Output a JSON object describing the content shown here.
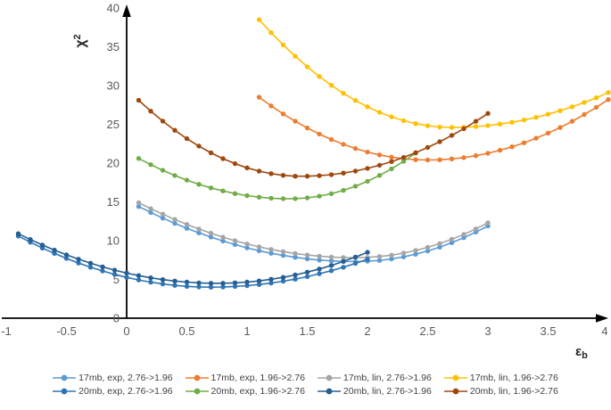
{
  "chart_data": {
    "type": "line",
    "title": "",
    "xlabel": "eps_b",
    "ylabel": "chi^2",
    "xlim": [
      -1,
      4
    ],
    "ylim": [
      0,
      40
    ],
    "grid": false,
    "legend_position": "bottom",
    "x_ticks": [
      {
        "v": -1,
        "label": "-1"
      },
      {
        "v": -0.5,
        "label": "-0.5"
      },
      {
        "v": 0,
        "label": "0"
      },
      {
        "v": 0.5,
        "label": "0.5"
      },
      {
        "v": 1,
        "label": "1"
      },
      {
        "v": 1.5,
        "label": "1.5"
      },
      {
        "v": 2,
        "label": "2"
      },
      {
        "v": 2.5,
        "label": "2.5"
      },
      {
        "v": 3,
        "label": "3"
      },
      {
        "v": 3.5,
        "label": "3.5"
      },
      {
        "v": 4,
        "label": "4"
      }
    ],
    "y_ticks": [
      {
        "v": 0,
        "label": "0"
      },
      {
        "v": 5,
        "label": "5"
      },
      {
        "v": 10,
        "label": "10"
      },
      {
        "v": 15,
        "label": "15"
      },
      {
        "v": 20,
        "label": "20"
      },
      {
        "v": 25,
        "label": "25"
      },
      {
        "v": 30,
        "label": "30"
      },
      {
        "v": 35,
        "label": "35"
      },
      {
        "v": 40,
        "label": "40"
      }
    ],
    "series": [
      {
        "name": "17mb, exp, 2.76->1.96",
        "color": "#5B9BD5",
        "x_start": 0.1,
        "x_step": 0.1,
        "y": [
          14.4,
          13.63,
          12.91,
          12.23,
          11.59,
          11.0,
          10.46,
          9.95,
          9.49,
          9.07,
          8.7,
          8.37,
          8.09,
          7.85,
          7.65,
          7.5,
          7.39,
          7.32,
          7.3,
          7.34,
          7.45,
          7.64,
          7.91,
          8.25,
          8.67,
          9.16,
          9.73,
          10.38,
          11.1,
          11.9
        ]
      },
      {
        "name": "17mb, exp, 1.96->2.76",
        "color": "#ED7D31",
        "x_start": 1.1,
        "x_step": 0.1,
        "y": [
          28.5,
          27.38,
          26.35,
          25.4,
          24.53,
          23.75,
          23.05,
          22.43,
          21.89,
          21.43,
          21.06,
          20.77,
          20.57,
          20.44,
          20.4,
          20.43,
          20.54,
          20.71,
          20.95,
          21.27,
          21.65,
          22.1,
          22.62,
          23.21,
          23.87,
          24.59,
          25.39,
          26.26,
          27.19,
          28.2
        ]
      },
      {
        "name": "17mb, lin, 2.76->1.96",
        "color": "#A5A5A5",
        "x_start": 0.1,
        "x_step": 0.1,
        "y": [
          14.9,
          14.13,
          13.41,
          12.73,
          12.09,
          11.5,
          10.96,
          10.45,
          9.99,
          9.57,
          9.2,
          8.87,
          8.59,
          8.35,
          8.15,
          8.0,
          7.89,
          7.82,
          7.8,
          7.84,
          7.95,
          8.13,
          8.4,
          8.73,
          9.14,
          9.62,
          10.18,
          10.81,
          11.52,
          12.3
        ]
      },
      {
        "name": "17mb, lin, 1.96->2.76",
        "color": "#FFC000",
        "x_start": 1.1,
        "x_step": 0.1,
        "y": [
          38.5,
          36.82,
          35.24,
          33.78,
          32.42,
          31.17,
          30.03,
          29.0,
          28.08,
          27.26,
          26.55,
          25.96,
          25.47,
          25.09,
          24.82,
          24.65,
          24.6,
          24.63,
          24.71,
          24.84,
          25.03,
          25.27,
          25.56,
          25.9,
          26.3,
          26.76,
          27.26,
          27.82,
          28.43,
          29.1
        ]
      },
      {
        "name": "20mb, exp, 2.76->1.96",
        "color": "#2E75B6",
        "x_start": -0.9,
        "x_step": 0.1,
        "y": [
          10.6,
          9.8,
          9.05,
          8.36,
          7.71,
          7.12,
          6.58,
          6.09,
          5.65,
          5.26,
          4.93,
          4.64,
          4.41,
          4.23,
          4.1,
          4.03,
          4.0,
          4.02,
          4.09,
          4.19,
          4.34,
          4.53,
          4.77,
          5.04,
          5.36,
          5.73,
          6.13,
          6.58,
          7.07,
          7.6
        ]
      },
      {
        "name": "20mb, exp, 1.96->2.76",
        "color": "#70AD47",
        "x_start": 0.1,
        "x_step": 0.1,
        "y": [
          20.6,
          19.8,
          19.07,
          18.4,
          17.8,
          17.27,
          16.81,
          16.41,
          16.07,
          15.81,
          15.61,
          15.47,
          15.41,
          15.41,
          15.52,
          15.73,
          16.06,
          16.48,
          17.02,
          17.66,
          18.41,
          19.27,
          20.23,
          21.3
        ]
      },
      {
        "name": "20mb, lin, 2.76->1.96",
        "color": "#255E91",
        "x_start": -0.9,
        "x_step": 0.1,
        "y": [
          10.9,
          10.15,
          9.44,
          8.78,
          8.17,
          7.61,
          7.09,
          6.62,
          6.2,
          5.82,
          5.49,
          5.21,
          4.98,
          4.79,
          4.65,
          4.55,
          4.51,
          4.51,
          4.56,
          4.66,
          4.81,
          5.02,
          5.27,
          5.58,
          5.94,
          6.35,
          6.81,
          7.32,
          7.89,
          8.5
        ]
      },
      {
        "name": "20mb, lin, 1.96->2.76",
        "color": "#9E480E",
        "x_start": 0.1,
        "x_step": 0.1,
        "y": [
          28.1,
          26.7,
          25.41,
          24.23,
          23.15,
          22.19,
          21.32,
          20.57,
          19.93,
          19.39,
          18.96,
          18.64,
          18.42,
          18.31,
          18.31,
          18.38,
          18.51,
          18.71,
          18.98,
          19.32,
          19.72,
          20.2,
          20.74,
          21.34,
          22.02,
          22.76,
          23.57,
          24.44,
          25.39,
          26.4
        ]
      }
    ],
    "legend_rows": [
      [
        0,
        1,
        2,
        3
      ],
      [
        4,
        5,
        6,
        7
      ]
    ]
  },
  "axes": {
    "y_title_main": "χ",
    "y_title_sup": "2",
    "x_title_main": "ε",
    "x_title_sub": "b"
  }
}
